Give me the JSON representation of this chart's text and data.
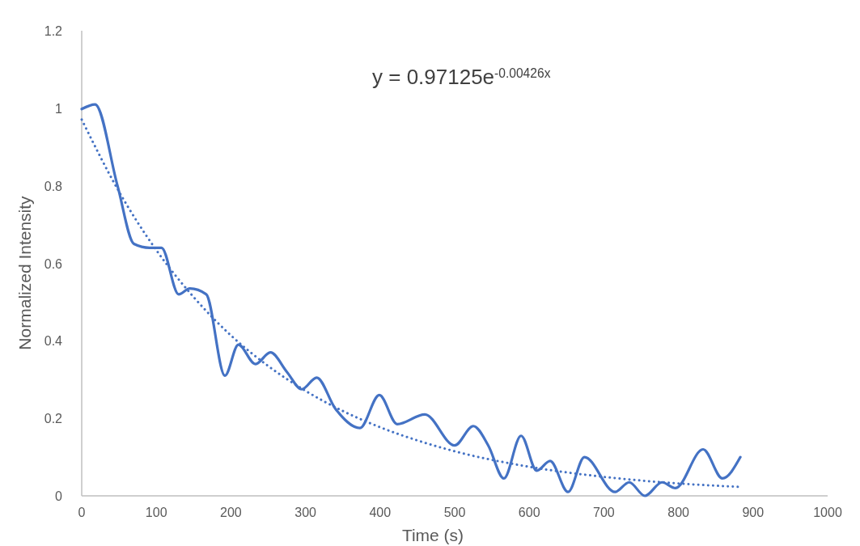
{
  "chart_data": {
    "type": "line",
    "xlabel": "Time (s)",
    "ylabel": "Normalized Intensity",
    "xlim": [
      0,
      1000
    ],
    "xticks": [
      0,
      100,
      200,
      300,
      400,
      500,
      600,
      700,
      800,
      900,
      1000
    ],
    "ylim": [
      0,
      1.2
    ],
    "yticks": [
      0,
      0.2,
      0.4,
      0.6,
      0.8,
      1,
      1.2
    ],
    "grid": false,
    "marker": "none",
    "annotations": [
      "y = 0.97125e$^{-0.00426x}$"
    ],
    "series": [
      {
        "color": "#4472c4",
        "line_style": "solid",
        "x": [
          0,
          18,
          48,
          70,
          91,
          107,
          130,
          145,
          167,
          192,
          210,
          233,
          253,
          275,
          295,
          315,
          340,
          373,
          399,
          423,
          460,
          500,
          525,
          545,
          566,
          589,
          610,
          628,
          652,
          674,
          715,
          734,
          755,
          778,
          796,
          833,
          859,
          883
        ],
        "values": [
          0.998,
          1.01,
          0.8,
          0.65,
          0.64,
          0.64,
          0.52,
          0.535,
          0.52,
          0.31,
          0.39,
          0.34,
          0.37,
          0.32,
          0.275,
          0.305,
          0.225,
          0.175,
          0.26,
          0.185,
          0.21,
          0.13,
          0.18,
          0.13,
          0.045,
          0.155,
          0.065,
          0.09,
          0.01,
          0.1,
          0.01,
          0.035,
          0,
          0.035,
          0.02,
          0.12,
          0.045,
          0.1
        ]
      },
      {
        "type": "line",
        "color": "#4472c4",
        "line_style": "dotted",
        "x": [
          0,
          50,
          100,
          150,
          200,
          250,
          300,
          350,
          400,
          450,
          500,
          600,
          700,
          800,
          883
        ],
        "values": [
          0.971,
          0.785,
          0.634,
          0.513,
          0.414,
          0.335,
          0.271,
          0.219,
          0.177,
          0.143,
          0.115,
          0.075,
          0.049,
          0.032,
          0.023
        ]
      }
    ]
  }
}
